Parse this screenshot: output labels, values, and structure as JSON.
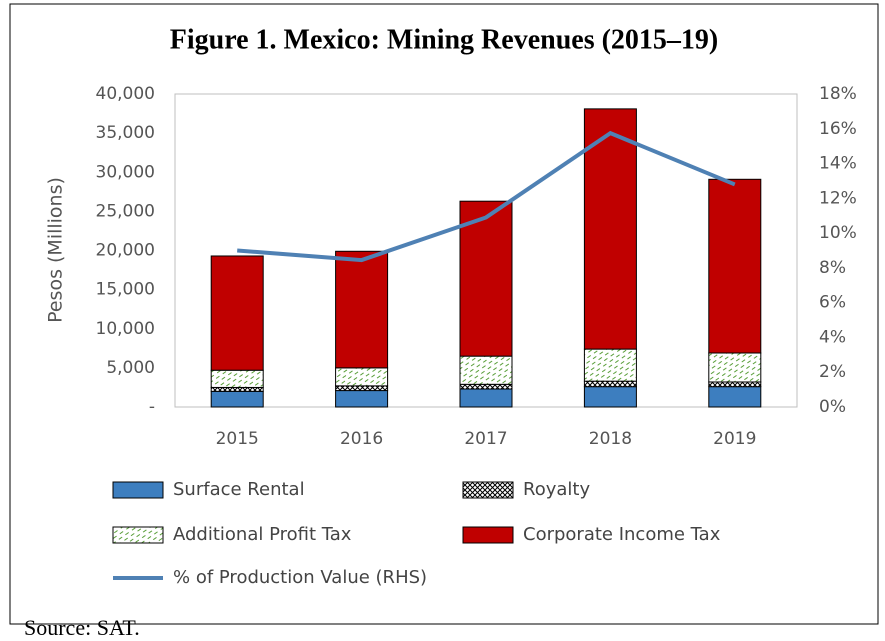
{
  "chart_data": {
    "type": "bar",
    "stacked": true,
    "title": "Figure 1. Mexico: Mining Revenues (2015–19)",
    "y_label": "Pesos (Millions)",
    "source": "Source: SAT.",
    "categories": [
      "2015",
      "2016",
      "2017",
      "2018",
      "2019"
    ],
    "series": [
      {
        "name": "Surface Rental",
        "color": "#3d7ebf",
        "pattern": "solid",
        "values": [
          2000,
          2100,
          2300,
          2600,
          2600
        ]
      },
      {
        "name": "Royalty",
        "color": "#000000",
        "pattern": "crosshatch",
        "values": [
          500,
          600,
          600,
          700,
          600
        ]
      },
      {
        "name": "Additional Profit Tax",
        "color": "#5a9e3a",
        "pattern": "dashes",
        "values": [
          2200,
          2300,
          3600,
          4100,
          3700
        ]
      },
      {
        "name": "Corporate Income Tax",
        "color": "#c00000",
        "pattern": "solid",
        "values": [
          14600,
          14900,
          19800,
          30700,
          22200
        ]
      },
      {
        "name": "% of Production Value (RHS)",
        "type": "line",
        "axis": "y2",
        "color": "#4f81b4",
        "values": [
          9.0,
          8.45,
          10.9,
          15.75,
          12.8
        ]
      }
    ],
    "ylim": [
      0,
      40000
    ],
    "yticks": [
      {
        "value": 0,
        "label": "-"
      },
      {
        "value": 5000,
        "label": "5,000"
      },
      {
        "value": 10000,
        "label": "10,000"
      },
      {
        "value": 15000,
        "label": "15,000"
      },
      {
        "value": 20000,
        "label": "20,000"
      },
      {
        "value": 25000,
        "label": "25,000"
      },
      {
        "value": 30000,
        "label": "30,000"
      },
      {
        "value": 35000,
        "label": "35,000"
      },
      {
        "value": 40000,
        "label": "40,000"
      }
    ],
    "y2lim": [
      0,
      18
    ],
    "y2ticks": [
      {
        "value": 0,
        "label": "0%"
      },
      {
        "value": 2,
        "label": "2%"
      },
      {
        "value": 4,
        "label": "4%"
      },
      {
        "value": 6,
        "label": "6%"
      },
      {
        "value": 8,
        "label": "8%"
      },
      {
        "value": 10,
        "label": "10%"
      },
      {
        "value": 12,
        "label": "12%"
      },
      {
        "value": 14,
        "label": "14%"
      },
      {
        "value": 16,
        "label": "16%"
      },
      {
        "value": 18,
        "label": "18%"
      }
    ],
    "grid": false,
    "legend": "bottom"
  }
}
